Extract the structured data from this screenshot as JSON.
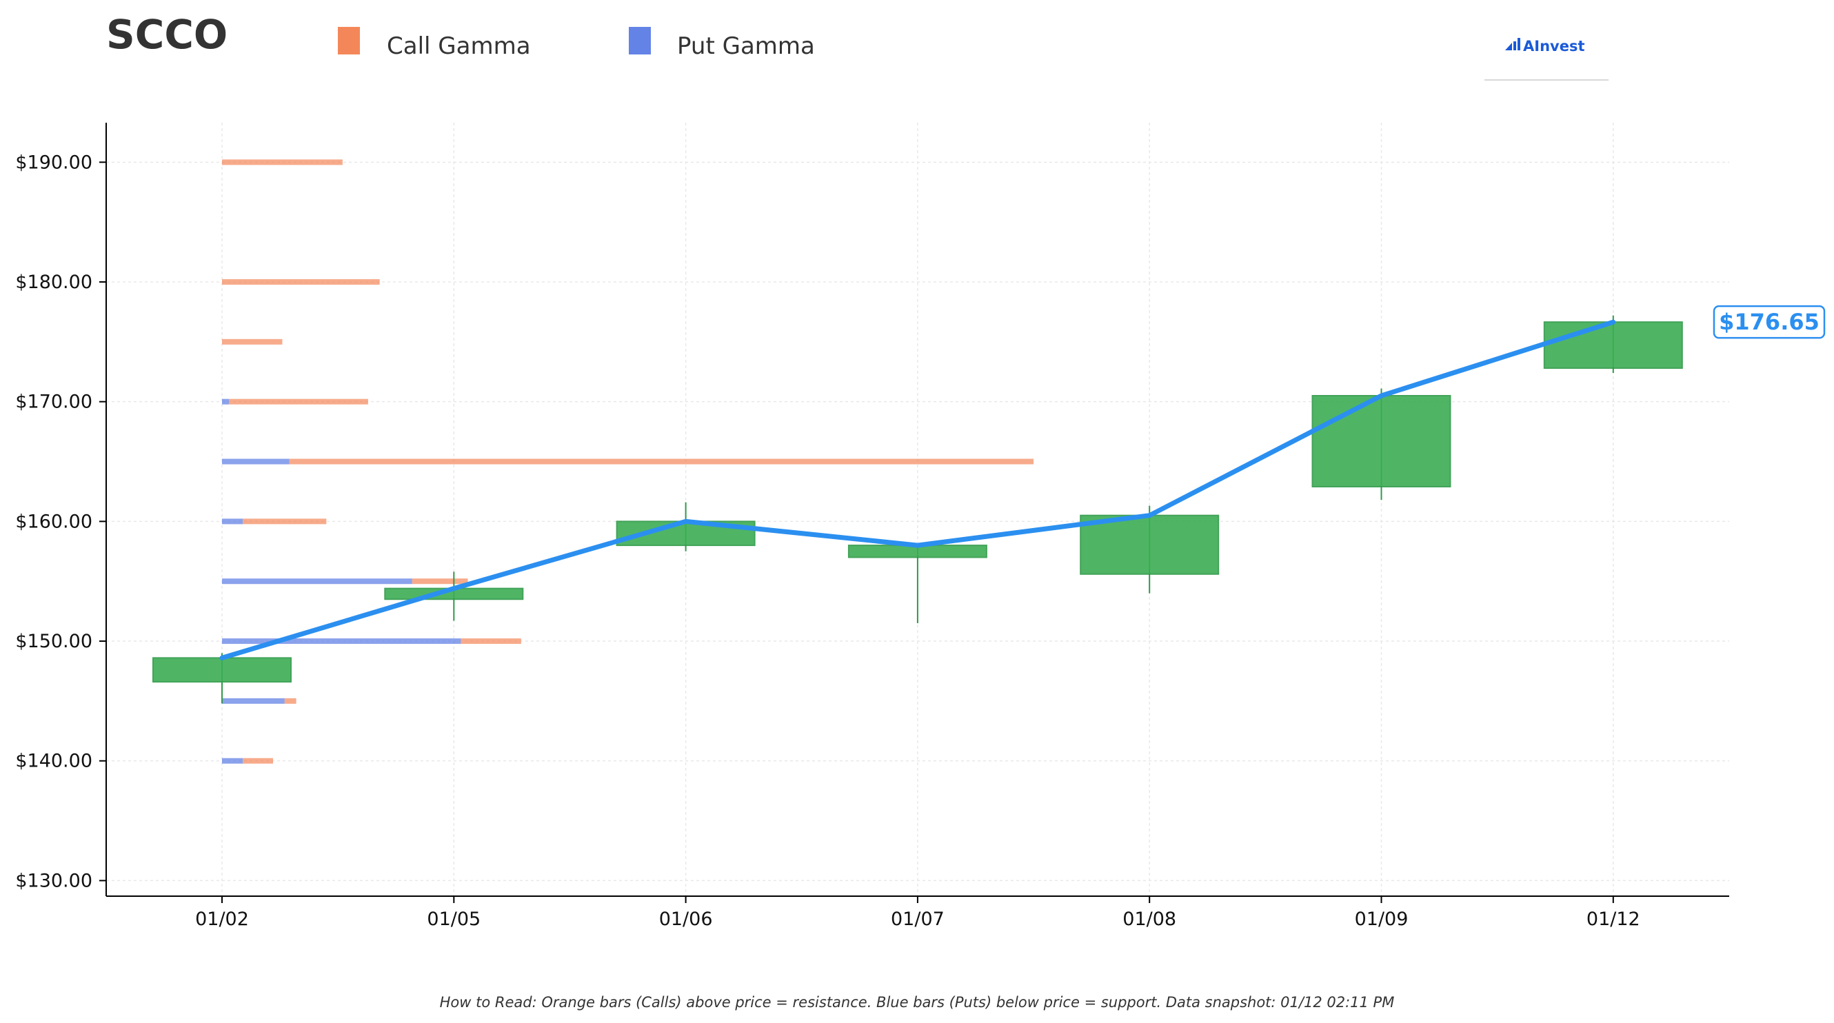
{
  "chart_data": {
    "type": "candlestick",
    "title": "SCCO",
    "xlabel": "",
    "ylabel": "",
    "categories": [
      "01/02",
      "01/05",
      "01/06",
      "01/07",
      "01/08",
      "01/09",
      "01/12"
    ],
    "ylim": [
      128.7,
      193.3
    ],
    "yticks": [
      130,
      140,
      150,
      160,
      170,
      180,
      190
    ],
    "ytick_labels": [
      "$130.00",
      "$140.00",
      "$150.00",
      "$160.00",
      "$170.00",
      "$180.00",
      "$190.00"
    ],
    "grid": true,
    "legend_placement": "top-left",
    "candles": [
      {
        "date": "01/02",
        "open": 146.6,
        "high": 149.0,
        "low": 144.8,
        "close": 148.6
      },
      {
        "date": "01/05",
        "open": 153.5,
        "high": 155.8,
        "low": 151.7,
        "close": 154.4
      },
      {
        "date": "01/06",
        "open": 158.0,
        "high": 161.6,
        "low": 157.5,
        "close": 160.0
      },
      {
        "date": "01/07",
        "open": 157.0,
        "high": 158.0,
        "low": 151.5,
        "close": 158.0
      },
      {
        "date": "01/08",
        "open": 155.6,
        "high": 161.3,
        "low": 154.0,
        "close": 160.5
      },
      {
        "date": "01/09",
        "open": 162.9,
        "high": 171.1,
        "low": 161.8,
        "close": 170.5
      },
      {
        "date": "01/12",
        "open": 172.8,
        "high": 177.2,
        "low": 172.4,
        "close": 176.65
      }
    ],
    "close_line": {
      "values": [
        148.6,
        154.4,
        160.0,
        158.0,
        160.5,
        170.5,
        176.65
      ]
    },
    "last_price_label": "$176.65",
    "gamma_series": [
      {
        "name": "Call Gamma",
        "color": "#f4875a"
      },
      {
        "name": "Put Gamma",
        "color": "#6483e6"
      }
    ],
    "gamma_unit_note": "bar lengths in date-axis units starting at the 01/02 column",
    "gamma_levels": [
      {
        "strike": 190,
        "put": 0.0,
        "call": 0.52
      },
      {
        "strike": 180,
        "put": 0.0,
        "call": 0.68
      },
      {
        "strike": 175,
        "put": 0.0,
        "call": 0.26
      },
      {
        "strike": 170,
        "put": 0.03,
        "call": 0.6
      },
      {
        "strike": 165,
        "put": 0.29,
        "call": 3.21
      },
      {
        "strike": 160,
        "put": 0.09,
        "call": 0.36
      },
      {
        "strike": 155,
        "put": 0.82,
        "call": 0.24
      },
      {
        "strike": 150,
        "put": 1.03,
        "call": 0.26
      },
      {
        "strike": 145,
        "put": 0.27,
        "call": 0.05
      },
      {
        "strike": 140,
        "put": 0.09,
        "call": 0.13
      }
    ]
  },
  "colors": {
    "candle_fill": "#3cae55",
    "candle_edge": "#2f9a48",
    "close_line": "#2b8ff0",
    "call_bar": "#f4875a",
    "put_bar": "#6483e6",
    "grid": "#e8e8e8",
    "axis": "#000000"
  },
  "branding": {
    "logo_text": "AInvest",
    "logo_icon": "chart-bars-icon"
  },
  "footnote": "How to Read: Orange bars (Calls) above price = resistance. Blue bars (Puts) below price = support. Data snapshot: 01/12 02:11 PM"
}
